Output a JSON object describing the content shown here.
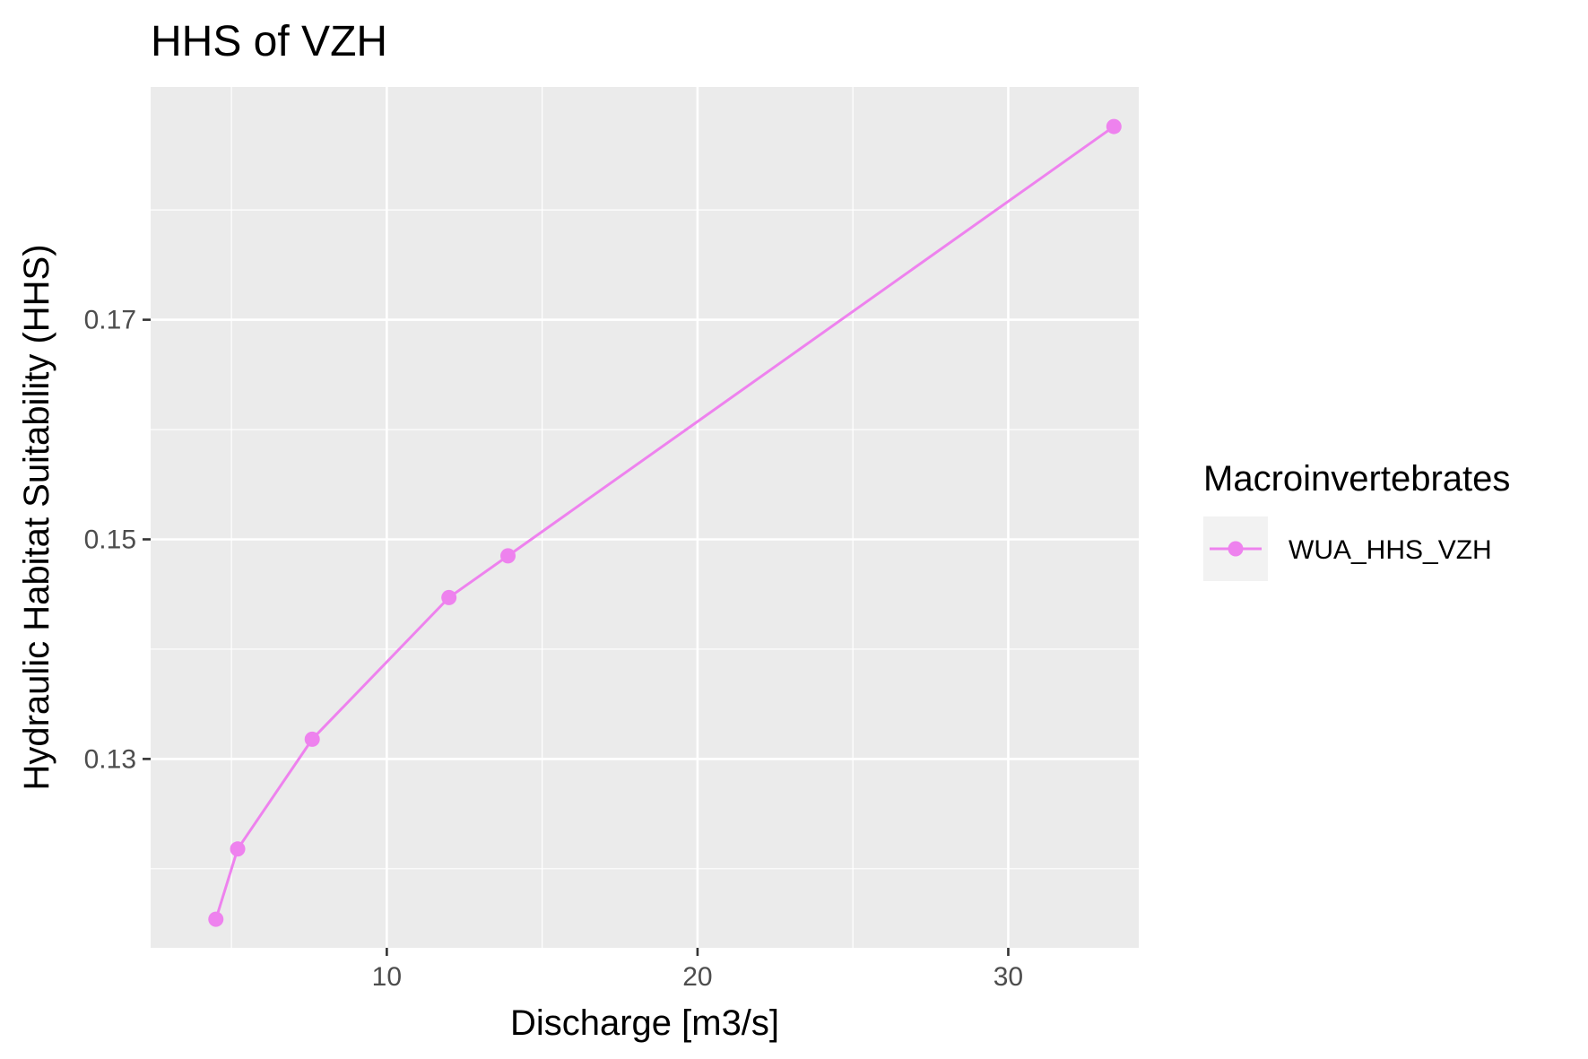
{
  "chart_data": {
    "type": "line",
    "title": "HHS of VZH",
    "xlabel": "Discharge [m3/s]",
    "ylabel": "Hydraulic Habitat Suitability (HHS)",
    "xlim": [
      2.4,
      34.2
    ],
    "ylim": [
      0.1128,
      0.1912
    ],
    "x_ticks": [
      {
        "value": 10,
        "label": "10"
      },
      {
        "value": 20,
        "label": "20"
      },
      {
        "value": 30,
        "label": "30"
      }
    ],
    "x_minor_ticks": [
      5,
      15,
      25
    ],
    "y_ticks": [
      {
        "value": 0.13,
        "label": "0.13"
      },
      {
        "value": 0.15,
        "label": "0.15"
      },
      {
        "value": 0.17,
        "label": "0.17"
      }
    ],
    "y_minor_ticks": [
      0.12,
      0.14,
      0.16,
      0.18
    ],
    "grid": true,
    "legend": {
      "title": "Macroinvertebrates",
      "position": "right"
    },
    "series": [
      {
        "name": "WUA_HHS_VZH",
        "color": "#EE82EE",
        "x": [
          4.5,
          5.2,
          7.6,
          12.0,
          13.9,
          33.4
        ],
        "y": [
          0.1154,
          0.1218,
          0.1318,
          0.1447,
          0.1485,
          0.1876
        ]
      }
    ],
    "panel_color": "#EBEBEB",
    "gridline_color": "#FFFFFF",
    "legend_key_bg": "#F2F2F2"
  }
}
